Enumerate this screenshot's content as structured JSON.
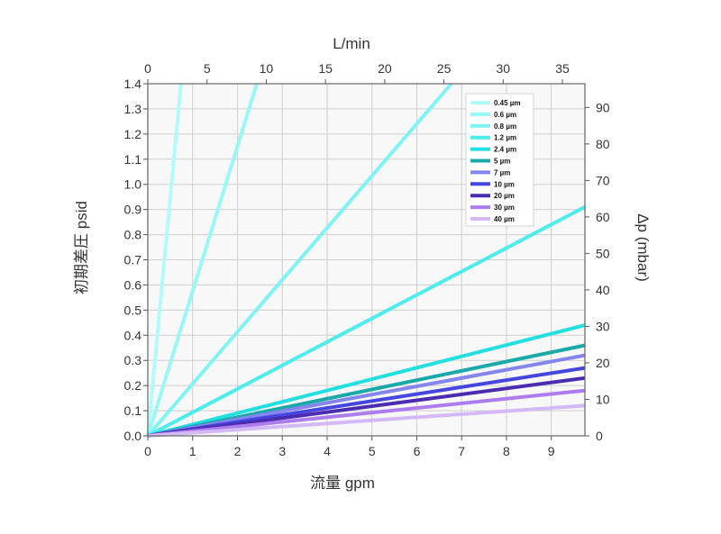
{
  "chart_data": {
    "type": "line",
    "axes": {
      "bottom": {
        "label": "流量 gpm",
        "range": [
          0,
          9.75
        ],
        "ticks": [
          0,
          1,
          2,
          3,
          4,
          5,
          6,
          7,
          8,
          9
        ]
      },
      "top": {
        "label": "L/min",
        "range": [
          0,
          36.9
        ],
        "ticks": [
          0,
          5,
          10,
          15,
          20,
          25,
          30,
          35
        ]
      },
      "left": {
        "label": "初期差圧 psid",
        "range": [
          0,
          1.4
        ],
        "ticks": [
          0.0,
          0.1,
          0.2,
          0.3,
          0.4,
          0.5,
          0.6,
          0.7,
          0.8,
          0.9,
          1.0,
          1.1,
          1.2,
          1.3,
          1.4
        ],
        "tick_labels": [
          "0.0",
          "0.1",
          "0.2",
          "0.3",
          "0.4",
          "0.5",
          "0.6",
          "0.7",
          "0.8",
          "0.9",
          "1.0",
          "1.1",
          "1.2",
          "1.3",
          "1.4"
        ]
      },
      "right": {
        "label": "Δp (mbar)",
        "range": [
          0,
          96.5
        ],
        "ticks": [
          0,
          10,
          20,
          30,
          40,
          50,
          60,
          70,
          80,
          90
        ]
      }
    },
    "grid": true,
    "legend_position": "top-right",
    "series": [
      {
        "name": "0.45 µm",
        "color": "#b3fbfb",
        "x": [
          0,
          0.74
        ],
        "y": [
          0,
          1.4
        ]
      },
      {
        "name": "0.6 µm",
        "color": "#9af7f7",
        "x": [
          0,
          2.43
        ],
        "y": [
          0,
          1.4
        ]
      },
      {
        "name": "0.8 µm",
        "color": "#80f4f4",
        "x": [
          0,
          6.77
        ],
        "y": [
          0,
          1.4
        ]
      },
      {
        "name": "1.2 µm",
        "color": "#4eecec",
        "x": [
          0,
          9.75
        ],
        "y": [
          0,
          0.91
        ]
      },
      {
        "name": "2.4 µm",
        "color": "#22e0e0",
        "x": [
          0,
          9.75
        ],
        "y": [
          0,
          0.44
        ]
      },
      {
        "name": "5 µm",
        "color": "#19a9a9",
        "x": [
          0,
          9.75
        ],
        "y": [
          0,
          0.36
        ]
      },
      {
        "name": "7 µm",
        "color": "#8585ee",
        "x": [
          0,
          9.75
        ],
        "y": [
          0,
          0.32
        ]
      },
      {
        "name": "10 µm",
        "color": "#4545e0",
        "x": [
          0,
          9.75
        ],
        "y": [
          0,
          0.27
        ]
      },
      {
        "name": "20 µm",
        "color": "#4b2bb0",
        "x": [
          0,
          9.75
        ],
        "y": [
          0,
          0.23
        ]
      },
      {
        "name": "30 µm",
        "color": "#ad7df0",
        "x": [
          0,
          9.75
        ],
        "y": [
          0,
          0.18
        ]
      },
      {
        "name": "40 µm",
        "color": "#d5b9f7",
        "x": [
          0,
          9.75
        ],
        "y": [
          0,
          0.12
        ]
      }
    ]
  }
}
